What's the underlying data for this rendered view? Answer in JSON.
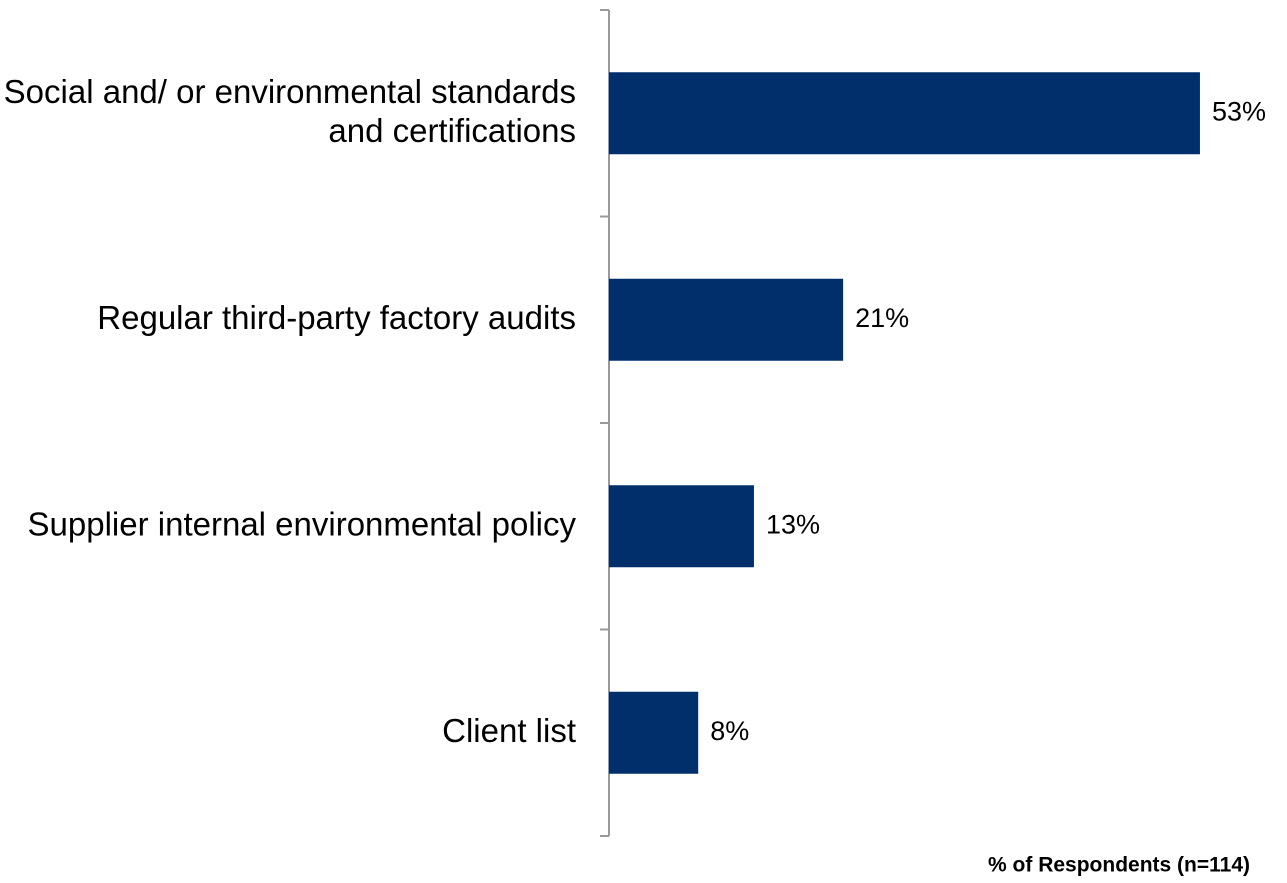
{
  "chart_data": {
    "type": "bar",
    "orientation": "horizontal",
    "categories": [
      "Social and/ or environmental standards and certifications",
      "Regular third-party factory audits",
      "Supplier internal environmental policy",
      "Client list"
    ],
    "values": [
      53,
      21,
      13,
      8
    ],
    "value_labels": [
      "53%",
      "21%",
      "13%",
      "8%"
    ],
    "color": "#002f6c",
    "xlim": [
      0,
      60
    ],
    "x_axis_label": "% of Respondents (n=114)"
  }
}
